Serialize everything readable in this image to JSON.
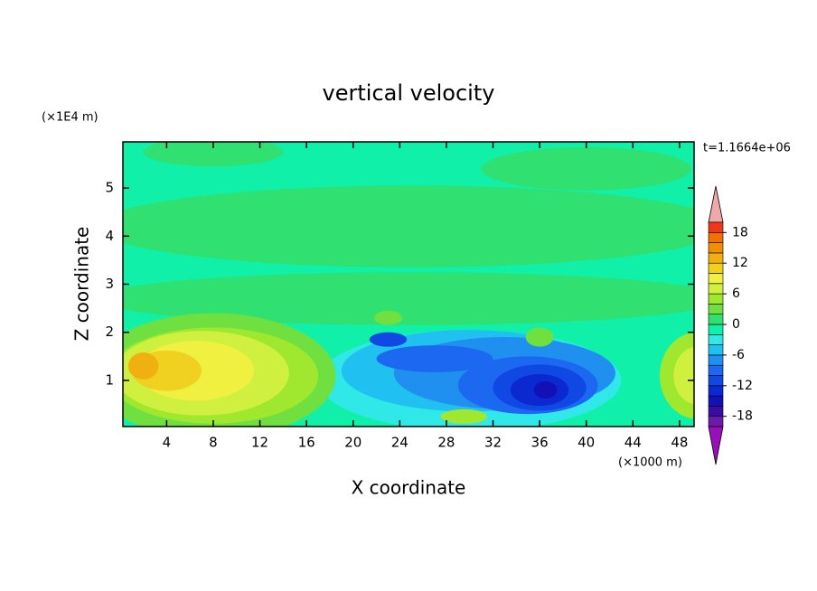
{
  "chart_data": {
    "type": "contour",
    "title": "vertical velocity",
    "y_unit": "(×1E4 m)",
    "x_unit": "(×1000 m)",
    "time_label": "t=1.1664e+06",
    "xlabel": "X coordinate",
    "ylabel": "Z coordinate",
    "xlim": [
      0.25,
      49.25
    ],
    "ylim": [
      0.04,
      5.96
    ],
    "xticks": [
      4,
      8,
      12,
      16,
      20,
      24,
      28,
      32,
      36,
      40,
      44,
      48
    ],
    "yticks": [
      1,
      2,
      3,
      4,
      5
    ],
    "levels": [
      -20,
      -18,
      -16,
      -14,
      -12,
      -10,
      -8,
      -6,
      -4,
      -2,
      0,
      2,
      4,
      6,
      8,
      10,
      12,
      14,
      16,
      18,
      20
    ],
    "colors": [
      "#9a10b8",
      "#6a1ca8",
      "#3a0ea0",
      "#1410b8",
      "#0c28d0",
      "#1048e4",
      "#1c68f0",
      "#2090f0",
      "#20c0f0",
      "#30e8e8",
      "#10f0a8",
      "#30e070",
      "#70e040",
      "#a0e830",
      "#d0f040",
      "#f0f040",
      "#f0d020",
      "#f0b010",
      "#f09000",
      "#f07000",
      "#f03818",
      "#f0a8a8"
    ],
    "colorbar_ticks": [
      18,
      12,
      6,
      0,
      -6,
      -12,
      -18
    ],
    "background_level": -1,
    "regions": [
      {
        "x": 25,
        "y": 4.2,
        "rx": 27,
        "ry": 0.85,
        "level": 1
      },
      {
        "x": 25,
        "y": 2.7,
        "rx": 27,
        "ry": 0.55,
        "level": 1
      },
      {
        "x": 40,
        "y": 5.4,
        "rx": 9,
        "ry": 0.45,
        "level": 1
      },
      {
        "x": 8,
        "y": 5.75,
        "rx": 6,
        "ry": 0.3,
        "level": 1
      },
      {
        "x": 30,
        "y": 1.0,
        "rx": 13,
        "ry": 1.05,
        "level": -3
      },
      {
        "x": 30,
        "y": 1.2,
        "rx": 11,
        "ry": 0.85,
        "level": -5
      },
      {
        "x": 33,
        "y": 1.15,
        "rx": 9.5,
        "ry": 0.75,
        "level": -7
      },
      {
        "x": 35,
        "y": 0.9,
        "rx": 6,
        "ry": 0.6,
        "level": -9
      },
      {
        "x": 27,
        "y": 1.45,
        "rx": 5,
        "ry": 0.28,
        "level": -9
      },
      {
        "x": 36,
        "y": 0.85,
        "rx": 4,
        "ry": 0.48,
        "level": -11
      },
      {
        "x": 23,
        "y": 1.85,
        "rx": 1.6,
        "ry": 0.15,
        "level": -11
      },
      {
        "x": 36,
        "y": 0.8,
        "rx": 2.5,
        "ry": 0.33,
        "level": -13
      },
      {
        "x": 36.5,
        "y": 0.8,
        "rx": 1,
        "ry": 0.18,
        "level": -15
      },
      {
        "x": 8,
        "y": 1.1,
        "rx": 10.5,
        "ry": 1.3,
        "level": 3
      },
      {
        "x": 8,
        "y": 1.1,
        "rx": 9,
        "ry": 1.0,
        "level": 5
      },
      {
        "x": 7,
        "y": 1.15,
        "rx": 7.5,
        "ry": 0.88,
        "level": 7
      },
      {
        "x": 6.5,
        "y": 1.2,
        "rx": 5,
        "ry": 0.62,
        "level": 9
      },
      {
        "x": 4,
        "y": 1.2,
        "rx": 3,
        "ry": 0.42,
        "level": 11
      },
      {
        "x": 2,
        "y": 1.3,
        "rx": 1.3,
        "ry": 0.28,
        "level": 13
      },
      {
        "x": 49.5,
        "y": 1.1,
        "rx": 3.2,
        "ry": 0.9,
        "level": 5
      },
      {
        "x": 49.5,
        "y": 1.1,
        "rx": 2,
        "ry": 0.6,
        "level": 7
      },
      {
        "x": 29.5,
        "y": 0.25,
        "rx": 2,
        "ry": 0.15,
        "level": 5
      },
      {
        "x": 36,
        "y": 1.9,
        "rx": 1.2,
        "ry": 0.2,
        "level": 3
      },
      {
        "x": 23,
        "y": 2.3,
        "rx": 1.2,
        "ry": 0.15,
        "level": 3
      }
    ]
  }
}
